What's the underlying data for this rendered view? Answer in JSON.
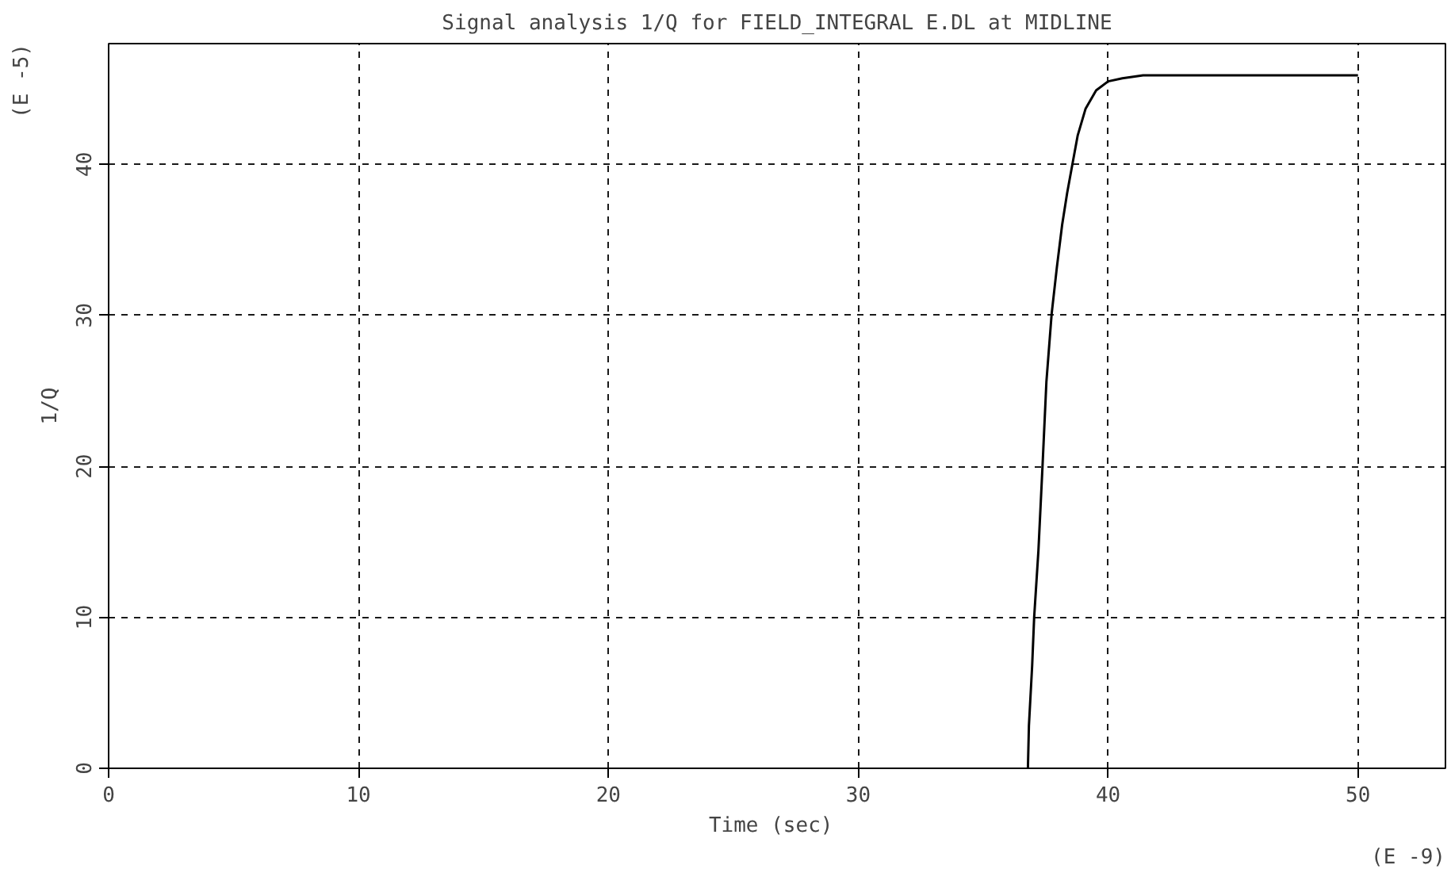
{
  "chart_data": {
    "type": "line",
    "title": "Signal analysis 1/Q for FIELD_INTEGRAL E.DL at MIDLINE",
    "xlabel": "Time  (sec)",
    "ylabel": "1/Q",
    "annotations": [
      "(E -5)",
      "(E -9)"
    ],
    "series": [
      {
        "color": "#000000",
        "x": [
          36.79,
          36.83,
          36.96,
          37.04,
          37.21,
          37.38,
          37.53,
          37.74,
          37.95,
          38.16,
          38.36,
          38.57,
          38.78,
          39.1,
          39.52,
          40.0,
          40.57,
          41.4,
          50
        ],
        "values": [
          0,
          2.8,
          6.8,
          10.0,
          14.4,
          20.2,
          25.6,
          30.1,
          33.2,
          36.0,
          38.1,
          40.0,
          41.9,
          43.7,
          44.9,
          45.5,
          45.7,
          45.9,
          45.9
        ]
      }
    ],
    "xlim": [
      0,
      53.5
    ],
    "ylim": [
      0,
      48
    ],
    "xticks": [
      0,
      10,
      20,
      30,
      40,
      50
    ],
    "yticks": [
      0,
      10,
      20,
      30,
      40
    ],
    "grid": true,
    "line_style": "solid"
  }
}
